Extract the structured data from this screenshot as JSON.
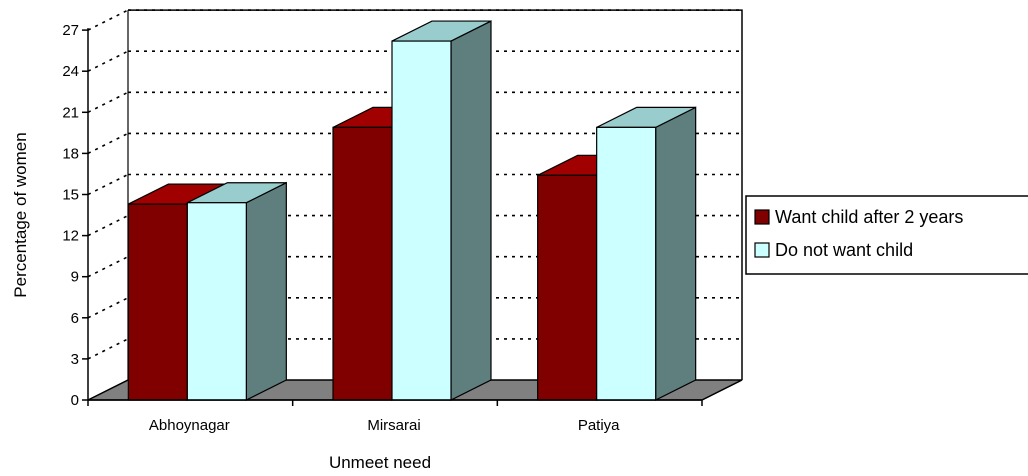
{
  "chart_data": {
    "type": "bar",
    "style": "3d-clustered-column",
    "title": "",
    "xlabel": "Unmeet need",
    "ylabel": "Percentage of women",
    "ylim": [
      0,
      27
    ],
    "yticks": [
      0,
      3,
      6,
      9,
      12,
      15,
      18,
      21,
      24,
      27
    ],
    "grid": true,
    "legend_position": "right",
    "categories": [
      "Abhoynagar",
      "Mirsarai",
      "Patiya"
    ],
    "series": [
      {
        "name": "Want child after 2 years",
        "values": [
          14.3,
          19.9,
          16.4
        ],
        "color": "#800000"
      },
      {
        "name": "Do not want child",
        "values": [
          14.4,
          26.2,
          19.9
        ],
        "color": "#ccffff"
      }
    ],
    "floor_color": "#808080"
  }
}
